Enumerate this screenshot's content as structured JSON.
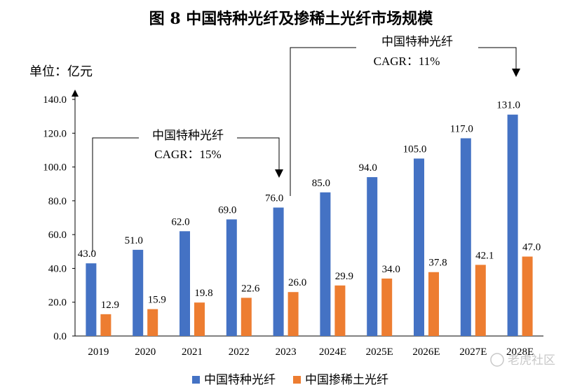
{
  "chart_data": {
    "type": "bar",
    "title": "图 8 中国特种光纤及掺稀土光纤市场规模",
    "ylabel": "单位：亿元",
    "ylim": [
      0,
      140
    ],
    "yticks": [
      "0.0",
      "20.0",
      "40.0",
      "60.0",
      "80.0",
      "100.0",
      "120.0",
      "140.0"
    ],
    "categories": [
      "2019",
      "2020",
      "2021",
      "2022",
      "2023",
      "2024E",
      "2025E",
      "2026E",
      "2027E",
      "2028E"
    ],
    "series": [
      {
        "name": "中国特种光纤",
        "color": "#4472C4",
        "values": [
          43.0,
          51.0,
          62.0,
          69.0,
          76.0,
          85.0,
          94.0,
          105.0,
          117.0,
          131.0
        ]
      },
      {
        "name": "中国掺稀土光纤",
        "color": "#ED7D31",
        "values": [
          12.9,
          15.9,
          19.8,
          22.6,
          26.0,
          29.9,
          34.0,
          37.8,
          42.1,
          47.0
        ]
      }
    ],
    "grid": false,
    "legend": "bottom",
    "annotations": [
      {
        "label": "中国特种光纤",
        "text": "CAGR：15%"
      },
      {
        "label": "中国特种光纤",
        "text": "CAGR：11%"
      }
    ]
  },
  "watermark": "老虎社区"
}
